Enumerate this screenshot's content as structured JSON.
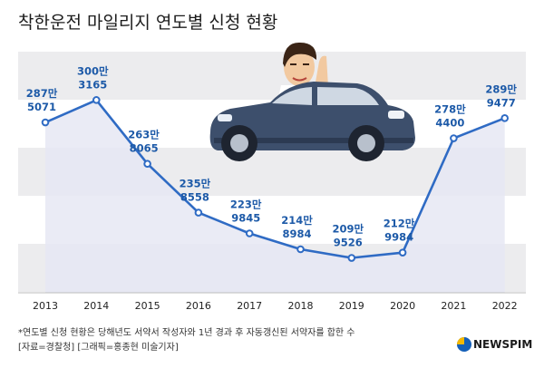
{
  "title": "착한운전 마일리지 연도별 신청 현황",
  "chart_data": {
    "type": "area",
    "categories": [
      "2013",
      "2014",
      "2015",
      "2016",
      "2017",
      "2018",
      "2019",
      "2020",
      "2021",
      "2022"
    ],
    "values": [
      2875071,
      3003165,
      2638065,
      2358558,
      2239845,
      2148984,
      2099526,
      2129984,
      2784400,
      2899477
    ],
    "data_labels": [
      [
        "287만",
        "5071"
      ],
      [
        "300만",
        "3165"
      ],
      [
        "263만",
        "8065"
      ],
      [
        "235만",
        "8558"
      ],
      [
        "223만",
        "9845"
      ],
      [
        "214만",
        "8984"
      ],
      [
        "209만",
        "9526"
      ],
      [
        "212만",
        "9984"
      ],
      [
        "278만",
        "4400"
      ],
      [
        "289만",
        "9477"
      ]
    ],
    "ylim": [
      1900000,
      3280000
    ],
    "grid": "bands",
    "colors": {
      "line": "#2f6bc4",
      "label": "#1d5aa8",
      "fill": "#e6e8f3",
      "band": "#ececee"
    }
  },
  "footnote": "*연도별 신청 현황은 당해년도 서약서 작성자와 1년 경과 후 자동갱신된 서약자를 합한 수",
  "credit": "[자료=경찰청]  [그래픽=홍종현 미술기자]",
  "brand": {
    "name": "NEWSPIM",
    "colors": {
      "blue": "#1560b8",
      "yellow": "#f5b800",
      "dark": "#1b1b1b"
    }
  },
  "illustration": "man-driving-car-waving"
}
